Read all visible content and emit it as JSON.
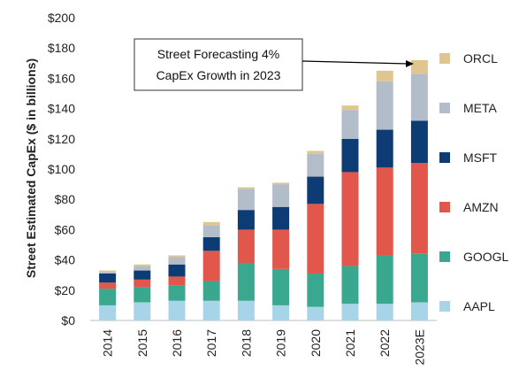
{
  "chart_data": {
    "type": "bar",
    "stacked": true,
    "categories": [
      "2014",
      "2015",
      "2016",
      "2017",
      "2018",
      "2019",
      "2020",
      "2021",
      "2022",
      "2023E"
    ],
    "series": [
      {
        "name": "AAPL",
        "color": "#a8d4ea",
        "values": [
          10,
          12,
          13,
          13,
          13,
          10,
          9,
          11,
          11,
          12
        ]
      },
      {
        "name": "GOOGL",
        "color": "#3aa88e",
        "values": [
          11,
          10,
          10,
          13,
          25,
          24,
          22,
          25,
          32,
          32
        ]
      },
      {
        "name": "AMZN",
        "color": "#e2574c",
        "values": [
          4,
          5,
          6,
          20,
          22,
          26,
          46,
          62,
          58,
          60
        ]
      },
      {
        "name": "MSFT",
        "color": "#0d3c74",
        "values": [
          6,
          6,
          8,
          9,
          13,
          15,
          18,
          22,
          25,
          28
        ]
      },
      {
        "name": "META",
        "color": "#b3bcc9",
        "values": [
          1,
          3,
          5,
          8,
          14,
          15,
          15,
          19,
          32,
          31
        ]
      },
      {
        "name": "ORCL",
        "color": "#dfc68f",
        "values": [
          1,
          1,
          1,
          2,
          1,
          1,
          2,
          3,
          7,
          9
        ]
      }
    ],
    "title": "",
    "xlabel": "",
    "ylabel": "Street Estimated CapEx ($ in billions)",
    "ylim": [
      0,
      200
    ],
    "yticks": [
      "$0",
      "$20",
      "$40",
      "$60",
      "$80",
      "$100",
      "$120",
      "$140",
      "$160",
      "$180",
      "$200"
    ],
    "legend_position": "right",
    "grid": false,
    "annotation": {
      "lines": [
        "Street Forecasting 4%",
        "CapEx Growth in 2023"
      ],
      "target": "2023E"
    }
  }
}
